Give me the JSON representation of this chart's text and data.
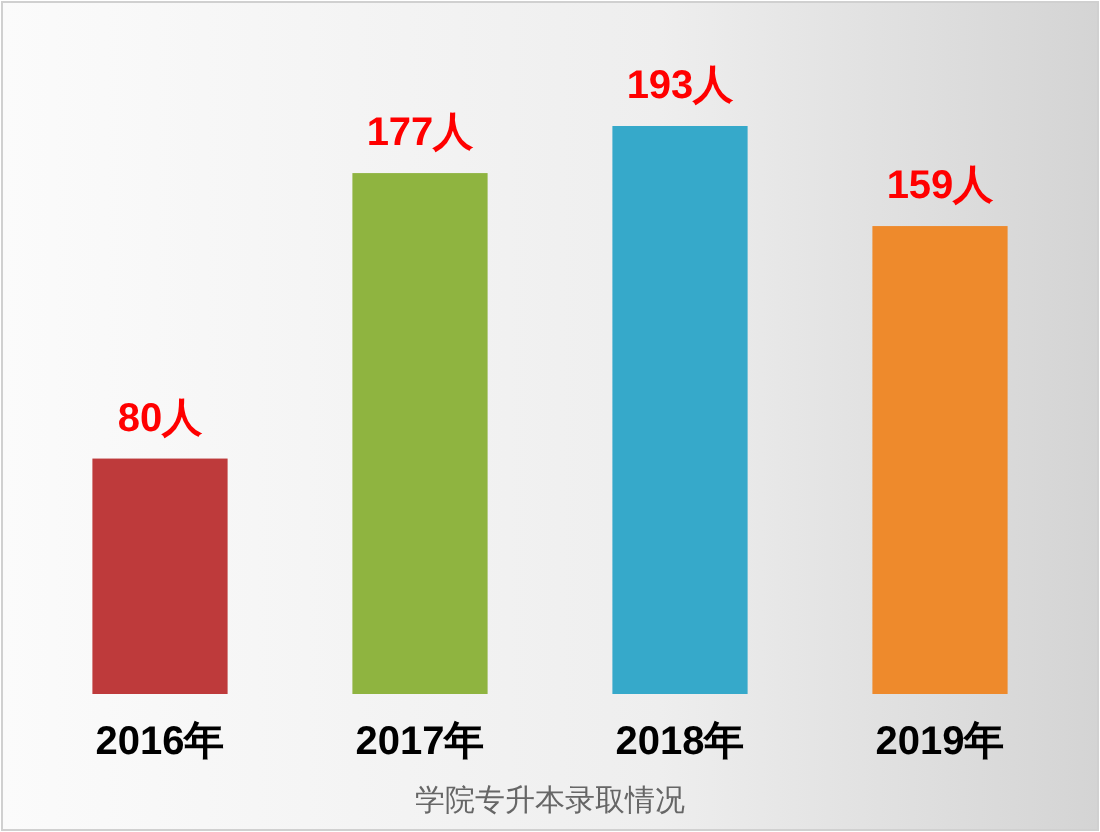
{
  "chart_data": {
    "type": "bar",
    "title": "学院专升本录取情况",
    "categories": [
      "2016年",
      "2017年",
      "2018年",
      "2019年"
    ],
    "values": [
      80,
      177,
      193,
      159
    ],
    "colors": [
      "#be3a3b",
      "#8fb440",
      "#36a9ca",
      "#ee8a2c"
    ],
    "value_labels": [
      "80人",
      "177人",
      "193人",
      "159人"
    ]
  }
}
